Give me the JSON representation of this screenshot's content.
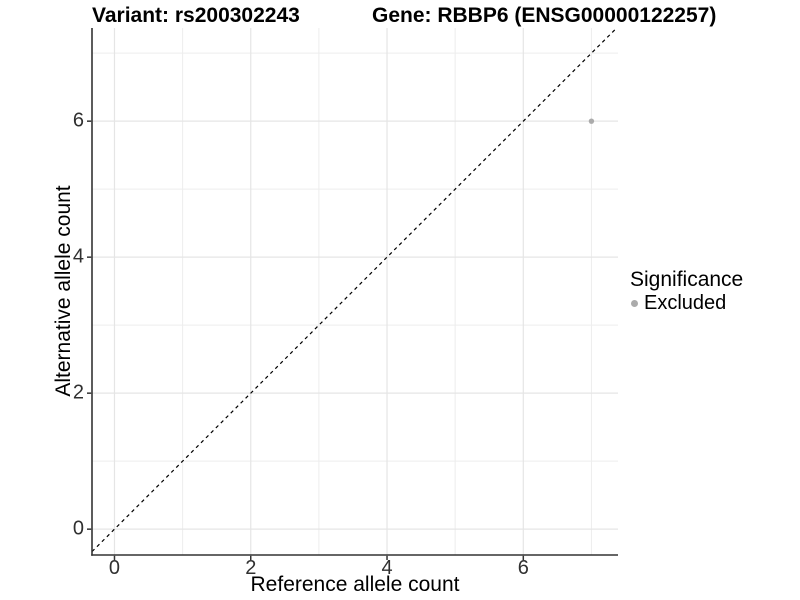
{
  "header": {
    "variant_title": "Variant: rs200302243",
    "gene_title": "Gene: RBBP6 (ENSG00000122257)"
  },
  "legend": {
    "title": "Significance",
    "items": [
      {
        "label": "Excluded",
        "color": "#ababab"
      }
    ]
  },
  "chart_data": {
    "type": "scatter",
    "title": "Variant: rs200302243 / Gene: RBBP6 (ENSG00000122257)",
    "xlabel": "Reference allele count",
    "ylabel": "Alternative allele count",
    "xlim": [
      -0.33,
      7.39
    ],
    "ylim": [
      -0.38,
      7.37
    ],
    "major_ticks": [
      0,
      2,
      4,
      6
    ],
    "minor_ticks": [
      1,
      3,
      5,
      7
    ],
    "grid": "major+minor",
    "legend_position": "right",
    "series": [
      {
        "name": "Excluded",
        "color": "#ababab",
        "points": [
          [
            7,
            6
          ]
        ]
      }
    ],
    "reference_line": {
      "style": "dashed",
      "slope": 1,
      "intercept": 0,
      "color": "#000000"
    }
  },
  "colors": {
    "grid_major": "#e5e5e5",
    "grid_minor": "#ededed",
    "axis": "#333333",
    "point": "#ababab",
    "background": "#ffffff"
  }
}
